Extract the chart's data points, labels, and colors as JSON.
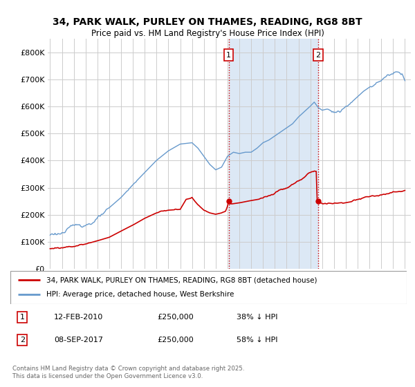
{
  "title_line1": "34, PARK WALK, PURLEY ON THAMES, READING, RG8 8BT",
  "title_line2": "Price paid vs. HM Land Registry's House Price Index (HPI)",
  "background_color": "#ffffff",
  "plot_bg_color": "#ffffff",
  "grid_color": "#cccccc",
  "legend_label_red": "34, PARK WALK, PURLEY ON THAMES, READING, RG8 8BT (detached house)",
  "legend_label_blue": "HPI: Average price, detached house, West Berkshire",
  "annotation1": {
    "label": "1",
    "date": "12-FEB-2010",
    "price": "£250,000",
    "hpi": "38% ↓ HPI"
  },
  "annotation2": {
    "label": "2",
    "date": "08-SEP-2017",
    "price": "£250,000",
    "hpi": "58% ↓ HPI"
  },
  "footer": "Contains HM Land Registry data © Crown copyright and database right 2025.\nThis data is licensed under the Open Government Licence v3.0.",
  "ylim": [
    0,
    850000
  ],
  "yticks": [
    0,
    100000,
    200000,
    300000,
    400000,
    500000,
    600000,
    700000,
    800000
  ],
  "ytick_labels": [
    "£0",
    "£100K",
    "£200K",
    "£300K",
    "£400K",
    "£500K",
    "£600K",
    "£700K",
    "£800K"
  ],
  "red_color": "#cc0000",
  "blue_color": "#6699cc",
  "shade_color": "#dce8f5",
  "vline_color": "#cc0000",
  "sale1_year": 2010.1,
  "sale2_year": 2017.67,
  "sale1_price": 250000,
  "sale2_price": 250000,
  "start_year": 1995,
  "end_year": 2025
}
